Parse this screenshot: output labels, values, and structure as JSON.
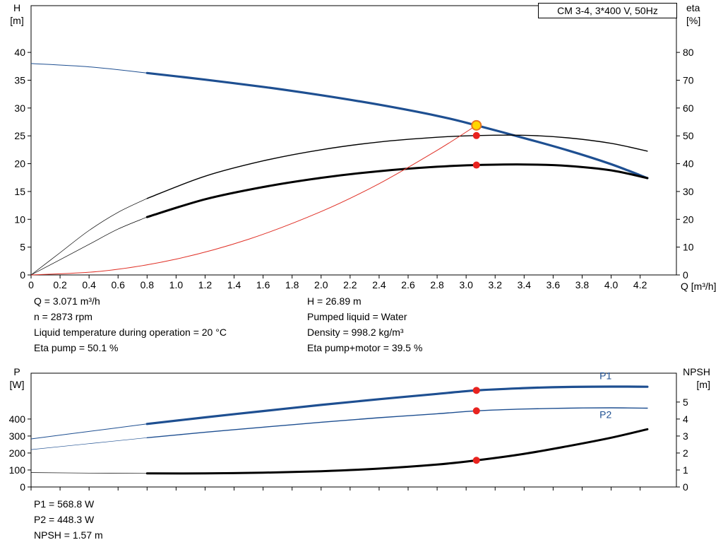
{
  "title_box": "CM 3-4, 3*400 V, 50Hz",
  "info": {
    "q": "Q = 3.071 m³/h",
    "h": "H = 26.89 m",
    "n": "n = 2873 rpm",
    "pumped_liquid": "Pumped liquid = Water",
    "liquid_temp": "Liquid temperature during operation = 20 °C",
    "density": "Density = 998.2 kg/m³",
    "eta_pump": "Eta pump = 50.1 %",
    "eta_pump_motor": "Eta pump+motor = 39.5 %"
  },
  "results": {
    "p1": "P1 = 568.8 W",
    "p2": "P2 = 448.3 W",
    "npsh": "NPSH = 1.57 m"
  },
  "colors": {
    "curve_blue": "#1e4f91",
    "curve_black": "#000000",
    "curve_red": "#e03127",
    "marker_red": "#e8231f",
    "duty_fill": "#ffd700",
    "duty_ring": "#e87722"
  },
  "chart_data": [
    {
      "type": "line",
      "title": "CM 3-4, 3*400 V, 50Hz",
      "x_axis": {
        "label": "Q [m³/h]",
        "xlim": [
          0,
          4.45
        ],
        "ticks": [
          0,
          0.2,
          0.4,
          0.6,
          0.8,
          1,
          1.2,
          1.4,
          1.6,
          1.8,
          2,
          2.2,
          2.4,
          2.6,
          2.8,
          3,
          3.2,
          3.4,
          3.6,
          3.8,
          4,
          4.2
        ],
        "show_tick_labels": true
      },
      "left_axis": {
        "label": [
          "H",
          "[m]"
        ],
        "ylim": [
          0,
          48.4
        ],
        "ticks": [
          0,
          5,
          10,
          15,
          20,
          25,
          30,
          35,
          40
        ]
      },
      "right_axis": {
        "label": [
          "eta",
          "[%]"
        ],
        "ylim": [
          0,
          96.8
        ],
        "ticks": [
          0,
          10,
          20,
          30,
          40,
          50,
          60,
          70,
          80
        ]
      },
      "grid": false,
      "legend": "none",
      "series": [
        {
          "name": "head-curve",
          "axis": "left",
          "color_key": "curve_blue",
          "width": 3.2,
          "thin_until": 0.8,
          "thin_width": 1,
          "points": [
            [
              0,
              38
            ],
            [
              0.4,
              37.4
            ],
            [
              0.8,
              36.3
            ],
            [
              1.2,
              35.1
            ],
            [
              1.6,
              33.8
            ],
            [
              2,
              32.3
            ],
            [
              2.4,
              30.6
            ],
            [
              2.8,
              28.6
            ],
            [
              3.071,
              26.89
            ],
            [
              3.4,
              24.6
            ],
            [
              3.7,
              22.4
            ],
            [
              4,
              19.9
            ],
            [
              4.25,
              17.4
            ]
          ]
        },
        {
          "name": "eta-pump-curve",
          "axis": "right",
          "color_key": "curve_black",
          "width": 1.4,
          "thin_until": 0.8,
          "thin_width": 0.7,
          "points": [
            [
              0,
              0
            ],
            [
              0.2,
              8
            ],
            [
              0.4,
              16
            ],
            [
              0.6,
              22.5
            ],
            [
              0.8,
              27.5
            ],
            [
              1.2,
              35.5
            ],
            [
              1.6,
              41
            ],
            [
              2,
              45
            ],
            [
              2.4,
              47.8
            ],
            [
              2.8,
              49.5
            ],
            [
              3.071,
              50.1
            ],
            [
              3.4,
              50.2
            ],
            [
              3.7,
              49.3
            ],
            [
              4,
              47.3
            ],
            [
              4.25,
              44.5
            ]
          ]
        },
        {
          "name": "eta-pump-motor-curve",
          "axis": "right",
          "color_key": "curve_black",
          "width": 3,
          "thin_until": 0.8,
          "thin_width": 0.7,
          "points": [
            [
              0,
              0
            ],
            [
              0.2,
              5.5
            ],
            [
              0.4,
              11
            ],
            [
              0.6,
              16.5
            ],
            [
              0.8,
              20.8
            ],
            [
              1.2,
              27.2
            ],
            [
              1.6,
              31.6
            ],
            [
              2,
              34.9
            ],
            [
              2.4,
              37.3
            ],
            [
              2.8,
              38.9
            ],
            [
              3.071,
              39.5
            ],
            [
              3.4,
              39.7
            ],
            [
              3.7,
              39.2
            ],
            [
              4,
              37.6
            ],
            [
              4.25,
              34.8
            ]
          ]
        },
        {
          "name": "system-curve",
          "axis": "left",
          "color_key": "curve_red",
          "width": 1,
          "points": [
            [
              0,
              0
            ],
            [
              0.5,
              0.71
            ],
            [
              1,
              2.85
            ],
            [
              1.5,
              6.42
            ],
            [
              2,
              11.4
            ],
            [
              2.4,
              16.4
            ],
            [
              2.8,
              22.4
            ],
            [
              3.071,
              26.89
            ]
          ]
        }
      ],
      "markers": [
        {
          "name": "duty-point",
          "style": "duty",
          "axis": "left",
          "x": 3.071,
          "y": 26.89
        },
        {
          "name": "eta-pump-point",
          "style": "red",
          "axis": "right",
          "x": 3.071,
          "y": 50.1
        },
        {
          "name": "eta-pump-motor-point",
          "style": "red",
          "axis": "right",
          "x": 3.071,
          "y": 39.5
        }
      ]
    },
    {
      "type": "line",
      "title": "",
      "x_axis": {
        "label": "",
        "xlim": [
          0,
          4.45
        ],
        "ticks": [
          0,
          0.2,
          0.4,
          0.6,
          0.8,
          1,
          1.2,
          1.4,
          1.6,
          1.8,
          2,
          2.2,
          2.4,
          2.6,
          2.8,
          3,
          3.2,
          3.4,
          3.6,
          3.8,
          4,
          4.2
        ],
        "show_tick_labels": false
      },
      "left_axis": {
        "label": [
          "P",
          "[W]"
        ],
        "ylim": [
          0,
          670
        ],
        "ticks": [
          0,
          100,
          200,
          300,
          400
        ]
      },
      "right_axis": {
        "label": [
          "NPSH",
          "[m]"
        ],
        "ylim": [
          0,
          6.7
        ],
        "ticks": [
          0,
          1,
          2,
          3,
          4,
          5
        ]
      },
      "grid": false,
      "legend": "inline",
      "series": [
        {
          "name": "p1-curve",
          "axis": "left",
          "color_key": "curve_blue",
          "width": 3.2,
          "thin_until": 0.8,
          "thin_width": 1,
          "label": {
            "text": "P1",
            "x": 3.92,
            "y": 635
          },
          "points": [
            [
              0,
              283
            ],
            [
              0.4,
              327
            ],
            [
              0.8,
              371
            ],
            [
              1.2,
              410
            ],
            [
              1.6,
              447
            ],
            [
              2,
              483
            ],
            [
              2.4,
              517
            ],
            [
              2.8,
              548
            ],
            [
              3.071,
              568.8
            ],
            [
              3.4,
              582
            ],
            [
              3.7,
              589
            ],
            [
              4,
              591
            ],
            [
              4.25,
              590
            ]
          ]
        },
        {
          "name": "p2-curve",
          "axis": "left",
          "color_key": "curve_blue",
          "width": 1.4,
          "thin_until": 0.8,
          "thin_width": 0.7,
          "label": {
            "text": "P2",
            "x": 3.92,
            "y": 405
          },
          "points": [
            [
              0,
              220
            ],
            [
              0.4,
              255
            ],
            [
              0.8,
              290
            ],
            [
              1.2,
              322
            ],
            [
              1.6,
              352
            ],
            [
              2,
              381
            ],
            [
              2.4,
              408
            ],
            [
              2.8,
              431
            ],
            [
              3.071,
              448.3
            ],
            [
              3.4,
              459
            ],
            [
              3.7,
              464
            ],
            [
              4,
              466
            ],
            [
              4.25,
              464
            ]
          ]
        },
        {
          "name": "npsh-curve",
          "axis": "right",
          "color_key": "curve_black",
          "width": 3,
          "thin_until": 0.8,
          "thin_width": 0.7,
          "points": [
            [
              0,
              0.85
            ],
            [
              0.4,
              0.82
            ],
            [
              0.8,
              0.8
            ],
            [
              1.2,
              0.8
            ],
            [
              1.6,
              0.84
            ],
            [
              2,
              0.93
            ],
            [
              2.4,
              1.08
            ],
            [
              2.8,
              1.32
            ],
            [
              3.071,
              1.57
            ],
            [
              3.4,
              1.95
            ],
            [
              3.7,
              2.4
            ],
            [
              4,
              2.9
            ],
            [
              4.25,
              3.4
            ]
          ]
        }
      ],
      "markers": [
        {
          "name": "p1-point",
          "style": "red",
          "axis": "left",
          "x": 3.071,
          "y": 568.8
        },
        {
          "name": "p2-point",
          "style": "red",
          "axis": "left",
          "x": 3.071,
          "y": 448.3
        },
        {
          "name": "npsh-point",
          "style": "red",
          "axis": "right",
          "x": 3.071,
          "y": 1.57
        }
      ]
    }
  ]
}
